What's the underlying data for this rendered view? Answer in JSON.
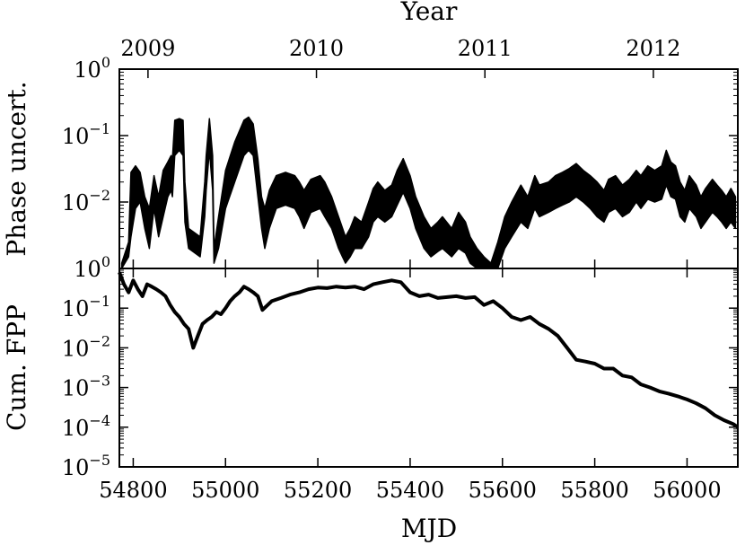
{
  "chart_data": [
    {
      "type": "line",
      "panel": "top",
      "xlabel": "MJD",
      "ylabel": "Phase uncert.",
      "top_axis": {
        "label": "Year",
        "ticks": [
          {
            "label": "2009",
            "mjd": 54832
          },
          {
            "label": "2010",
            "mjd": 55197
          },
          {
            "label": "2011",
            "mjd": 55562
          },
          {
            "label": "2012",
            "mjd": 55927
          }
        ]
      },
      "xlim": [
        54770,
        56110
      ],
      "ylim": [
        0.001,
        1
      ],
      "yscale": "log",
      "yticks": [
        {
          "base": "10",
          "exp": "0",
          "value": 1
        },
        {
          "base": "10",
          "exp": "−1",
          "value": 0.1
        },
        {
          "base": "10",
          "exp": "−2",
          "value": 0.01
        }
      ],
      "series": [
        {
          "x": [
            54775,
            54790,
            54795,
            54805,
            54815,
            54825,
            54835,
            54845,
            54855,
            54865,
            54875,
            54882,
            54885,
            54890,
            54900,
            54908,
            54912,
            54920,
            54945,
            54955,
            54958,
            54965,
            54972,
            54975,
            54985,
            55000,
            55020,
            55040,
            55050,
            55060,
            55070,
            55078,
            55085,
            55095,
            55110,
            55130,
            55150,
            55160,
            55170,
            55185,
            55205,
            55215,
            55230,
            55245,
            55260,
            55270,
            55280,
            55295,
            55310,
            55320,
            55330,
            55345,
            55360,
            55372,
            55385,
            55400,
            55412,
            55430,
            55445,
            55460,
            55470,
            55490,
            55505,
            55520,
            55530,
            55545,
            55560,
            55575,
            55590,
            55605,
            55620,
            55640,
            55655,
            55670,
            55680,
            55700,
            55715,
            55730,
            55745,
            55760,
            55775,
            55790,
            55805,
            55820,
            55830,
            55845,
            55860,
            55875,
            55890,
            55900,
            55915,
            55930,
            55945,
            55955,
            55965,
            55975,
            55985,
            55995,
            56005,
            56020,
            56030,
            56040,
            56055,
            56065,
            56075,
            56085,
            56095,
            56105
          ],
          "upper": [
            0.0012,
            0.0025,
            0.028,
            0.035,
            0.028,
            0.012,
            0.008,
            0.025,
            0.012,
            0.03,
            0.04,
            0.05,
            0.045,
            0.17,
            0.18,
            0.17,
            0.02,
            0.004,
            0.003,
            0.02,
            0.05,
            0.18,
            0.05,
            0.002,
            0.006,
            0.03,
            0.08,
            0.17,
            0.19,
            0.15,
            0.045,
            0.012,
            0.008,
            0.015,
            0.025,
            0.028,
            0.025,
            0.02,
            0.015,
            0.022,
            0.025,
            0.02,
            0.012,
            0.006,
            0.003,
            0.004,
            0.006,
            0.005,
            0.01,
            0.016,
            0.02,
            0.015,
            0.018,
            0.03,
            0.045,
            0.025,
            0.012,
            0.006,
            0.004,
            0.005,
            0.006,
            0.004,
            0.007,
            0.005,
            0.003,
            0.002,
            0.0015,
            0.0012,
            0.0025,
            0.006,
            0.01,
            0.018,
            0.012,
            0.025,
            0.018,
            0.02,
            0.025,
            0.028,
            0.032,
            0.038,
            0.03,
            0.025,
            0.02,
            0.015,
            0.022,
            0.025,
            0.018,
            0.022,
            0.03,
            0.025,
            0.035,
            0.03,
            0.035,
            0.06,
            0.04,
            0.035,
            0.02,
            0.015,
            0.025,
            0.018,
            0.012,
            0.016,
            0.022,
            0.018,
            0.015,
            0.012,
            0.016,
            0.012
          ],
          "lower": [
            0.001,
            0.0015,
            0.003,
            0.008,
            0.01,
            0.004,
            0.002,
            0.008,
            0.003,
            0.006,
            0.012,
            0.015,
            0.012,
            0.05,
            0.06,
            0.05,
            0.005,
            0.002,
            0.0015,
            0.006,
            0.015,
            0.06,
            0.015,
            0.0012,
            0.002,
            0.008,
            0.02,
            0.05,
            0.06,
            0.05,
            0.012,
            0.004,
            0.002,
            0.004,
            0.008,
            0.009,
            0.008,
            0.006,
            0.004,
            0.007,
            0.008,
            0.006,
            0.004,
            0.002,
            0.0012,
            0.0015,
            0.002,
            0.002,
            0.003,
            0.005,
            0.006,
            0.005,
            0.006,
            0.009,
            0.014,
            0.008,
            0.004,
            0.002,
            0.0015,
            0.0018,
            0.002,
            0.0015,
            0.002,
            0.0017,
            0.0012,
            0.001,
            0.001,
            0.001,
            0.001,
            0.002,
            0.003,
            0.005,
            0.004,
            0.008,
            0.006,
            0.007,
            0.008,
            0.009,
            0.01,
            0.012,
            0.01,
            0.008,
            0.006,
            0.005,
            0.007,
            0.008,
            0.006,
            0.007,
            0.01,
            0.008,
            0.011,
            0.01,
            0.011,
            0.018,
            0.012,
            0.011,
            0.006,
            0.005,
            0.008,
            0.006,
            0.004,
            0.005,
            0.007,
            0.006,
            0.005,
            0.004,
            0.005,
            0.004
          ]
        }
      ]
    },
    {
      "type": "line",
      "panel": "bottom",
      "xlabel": "MJD",
      "ylabel": "Cum. FPP",
      "xlim": [
        54770,
        56110
      ],
      "ylim": [
        1e-05,
        1
      ],
      "yscale": "log",
      "xticks": [
        54800,
        55000,
        55200,
        55400,
        55600,
        55800,
        56000
      ],
      "yticks": [
        {
          "base": "10",
          "exp": "0",
          "value": 1
        },
        {
          "base": "10",
          "exp": "−1",
          "value": 0.1
        },
        {
          "base": "10",
          "exp": "−2",
          "value": 0.01
        },
        {
          "base": "10",
          "exp": "−3",
          "value": 0.001
        },
        {
          "base": "10",
          "exp": "−4",
          "value": 0.0001
        },
        {
          "base": "10",
          "exp": "−5",
          "value": 1e-05
        }
      ],
      "series": [
        {
          "x": [
            54770,
            54780,
            54790,
            54800,
            54810,
            54820,
            54830,
            54840,
            54850,
            54860,
            54870,
            54880,
            54890,
            54900,
            54910,
            54920,
            54930,
            54940,
            54950,
            54960,
            54970,
            54980,
            54990,
            55000,
            55010,
            55020,
            55030,
            55040,
            55050,
            55060,
            55070,
            55080,
            55100,
            55120,
            55140,
            55160,
            55180,
            55200,
            55220,
            55240,
            55260,
            55280,
            55300,
            55320,
            55340,
            55360,
            55380,
            55400,
            55420,
            55440,
            55460,
            55480,
            55500,
            55520,
            55540,
            55560,
            55580,
            55600,
            55620,
            55640,
            55660,
            55680,
            55700,
            55720,
            55740,
            55760,
            55780,
            55800,
            55820,
            55840,
            55860,
            55880,
            55900,
            55920,
            55940,
            55960,
            55980,
            56000,
            56020,
            56040,
            56060,
            56080,
            56100,
            56110
          ],
          "y": [
            0.8,
            0.4,
            0.25,
            0.5,
            0.3,
            0.2,
            0.4,
            0.35,
            0.3,
            0.25,
            0.2,
            0.12,
            0.08,
            0.06,
            0.04,
            0.03,
            0.01,
            0.02,
            0.04,
            0.05,
            0.06,
            0.08,
            0.07,
            0.1,
            0.15,
            0.2,
            0.25,
            0.35,
            0.3,
            0.25,
            0.2,
            0.09,
            0.15,
            0.18,
            0.22,
            0.25,
            0.3,
            0.33,
            0.32,
            0.35,
            0.33,
            0.35,
            0.3,
            0.4,
            0.45,
            0.5,
            0.45,
            0.25,
            0.2,
            0.22,
            0.18,
            0.19,
            0.2,
            0.18,
            0.19,
            0.12,
            0.15,
            0.1,
            0.06,
            0.05,
            0.06,
            0.04,
            0.03,
            0.02,
            0.01,
            0.005,
            0.0045,
            0.004,
            0.003,
            0.003,
            0.002,
            0.0018,
            0.0012,
            0.001,
            0.0008,
            0.0007,
            0.0006,
            0.0005,
            0.0004,
            0.0003,
            0.0002,
            0.00015,
            0.00012,
            0.0001
          ]
        }
      ]
    }
  ]
}
